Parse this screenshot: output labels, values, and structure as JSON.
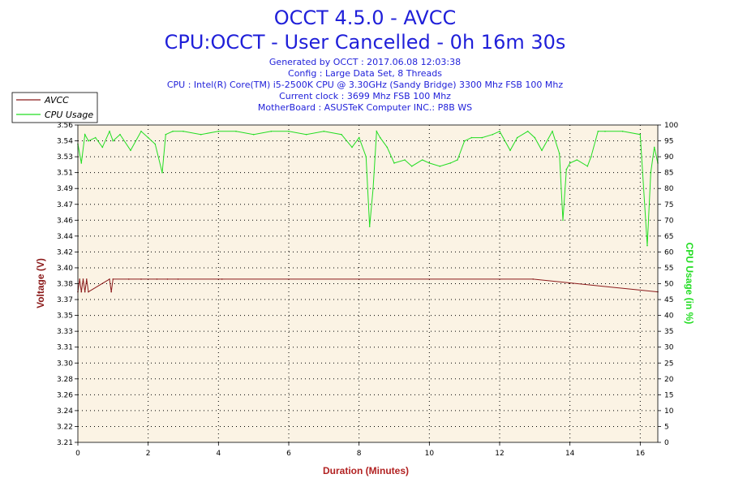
{
  "header": {
    "title": "OCCT 4.5.0 - AVCC",
    "subtitle": "CPU:OCCT - User Cancelled - 0h 16m 30s",
    "info": [
      "Generated by OCCT : 2017.06.08 12:03:38",
      "Config : Large Data Set, 8 Threads",
      "CPU : Intel(R) Core(TM) i5-2500K CPU @ 3.30GHz (Sandy Bridge) 3300 Mhz FSB 100 Mhz",
      "Current clock : 3699 Mhz FSB 100 Mhz",
      "MotherBoard : ASUSTeK Computer INC.: P8B WS"
    ]
  },
  "colors": {
    "voltage": "#8b1a1a",
    "cpu": "#22dd22",
    "plot_bg": "#fbf3e4",
    "title": "#1f1fd9",
    "xlabel": "#b22222"
  },
  "chart_data": {
    "type": "line",
    "xlabel": "Duration (Minutes)",
    "ylabel": "Voltage (V)",
    "y2label": "CPU Usage (in %)",
    "xlim": [
      0,
      16.5
    ],
    "ylim": [
      3.21,
      3.56
    ],
    "y2lim": [
      0,
      100
    ],
    "x_ticks": [
      "0",
      "2",
      "4",
      "6",
      "8",
      "10",
      "12",
      "14",
      "16"
    ],
    "y_ticks": [
      "3.21",
      "3.22",
      "3.24",
      "3.26",
      "3.28",
      "3.30",
      "3.31",
      "3.33",
      "3.35",
      "3.37",
      "3.38",
      "3.40",
      "3.42",
      "3.44",
      "3.46",
      "3.47",
      "3.49",
      "3.51",
      "3.53",
      "3.54",
      "3.56"
    ],
    "y2_ticks": [
      "0",
      "5",
      "10",
      "15",
      "20",
      "25",
      "30",
      "35",
      "40",
      "45",
      "50",
      "55",
      "60",
      "65",
      "70",
      "75",
      "80",
      "85",
      "90",
      "95",
      "100"
    ],
    "grid": true,
    "legend_position": "top-left",
    "series": [
      {
        "name": "AVCC",
        "axis": "left",
        "x": [
          0,
          0.05,
          0.1,
          0.15,
          0.2,
          0.25,
          0.3,
          0.9,
          0.95,
          1.0,
          1.45,
          1.8,
          2.25,
          2.55,
          2.85,
          4.1,
          12.95,
          16.5
        ],
        "values": [
          3.376,
          3.39,
          3.376,
          3.39,
          3.376,
          3.39,
          3.376,
          3.39,
          3.376,
          3.39,
          3.39,
          3.39,
          3.39,
          3.39,
          3.39,
          3.39,
          3.39,
          3.376
        ]
      },
      {
        "name": "CPU Usage",
        "axis": "right",
        "x": [
          0,
          0.1,
          0.2,
          0.3,
          0.5,
          0.7,
          0.9,
          1.0,
          1.2,
          1.5,
          1.8,
          2.0,
          2.2,
          2.4,
          2.5,
          2.7,
          3.0,
          3.5,
          4.0,
          4.5,
          5.0,
          5.5,
          6.0,
          6.5,
          7.0,
          7.5,
          7.8,
          8.0,
          8.2,
          8.3,
          8.4,
          8.5,
          8.6,
          8.8,
          9.0,
          9.3,
          9.5,
          9.8,
          10.0,
          10.3,
          10.6,
          10.8,
          11.0,
          11.2,
          11.5,
          11.8,
          12.0,
          12.3,
          12.5,
          12.8,
          13.0,
          13.2,
          13.5,
          13.7,
          13.8,
          13.9,
          14.0,
          14.2,
          14.5,
          14.6,
          14.8,
          15.0,
          15.5,
          16.0,
          16.2,
          16.3,
          16.4,
          16.5
        ],
        "values": [
          94,
          88,
          97,
          95,
          96,
          93,
          98,
          95,
          97,
          92,
          98,
          96,
          94,
          85,
          97,
          98,
          98,
          97,
          98,
          98,
          97,
          98,
          98,
          97,
          98,
          97,
          93,
          96,
          90,
          68,
          80,
          98,
          96,
          93,
          88,
          89,
          87,
          89,
          88,
          87,
          88,
          89,
          95,
          96,
          96,
          97,
          98,
          92,
          96,
          98,
          96,
          92,
          98,
          91,
          70,
          86,
          88,
          89,
          87,
          90,
          98,
          98,
          98,
          97,
          62,
          85,
          93,
          88
        ]
      }
    ]
  }
}
